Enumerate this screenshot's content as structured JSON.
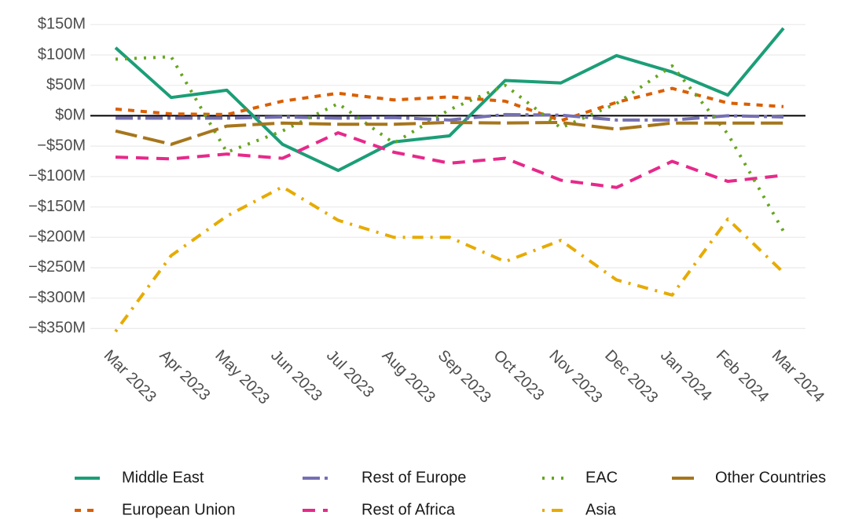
{
  "chart_data": {
    "type": "line",
    "x": [
      "Mar 2023",
      "Apr 2023",
      "May 2023",
      "Jun 2023",
      "Jul 2023",
      "Aug 2023",
      "Sep 2023",
      "Oct 2023",
      "Nov 2023",
      "Dec 2023",
      "Jan 2024",
      "Feb 2024",
      "Mar 2024"
    ],
    "series": [
      {
        "name": "Middle East",
        "color": "#1b9e77",
        "values": [
          112,
          30,
          42,
          -47,
          -90,
          -43,
          -33,
          58,
          54,
          99,
          72,
          34,
          144
        ]
      },
      {
        "name": "European Union",
        "color": "#d95f02",
        "values": [
          11,
          3,
          2,
          24,
          37,
          26,
          31,
          24,
          -8,
          22,
          45,
          21,
          15
        ]
      },
      {
        "name": "Rest of Europe",
        "color": "#7570b3",
        "values": [
          -4,
          -4,
          -4,
          -2,
          -4,
          -3,
          -7,
          2,
          1,
          -7,
          -7,
          0,
          -2
        ]
      },
      {
        "name": "Rest of Africa",
        "color": "#e7298a",
        "values": [
          -68,
          -71,
          -63,
          -70,
          -28,
          -60,
          -78,
          -70,
          -106,
          -118,
          -75,
          -108,
          -98
        ]
      },
      {
        "name": "EAC",
        "color": "#66a61e",
        "values": [
          93,
          97,
          -60,
          -25,
          20,
          -45,
          10,
          50,
          -20,
          20,
          82,
          -30,
          -190
        ]
      },
      {
        "name": "Asia",
        "color": "#e6ab02",
        "values": [
          -355,
          -230,
          -165,
          -117,
          -172,
          -200,
          -200,
          -240,
          -205,
          -270,
          -295,
          -170,
          -258
        ]
      },
      {
        "name": "Other Countries",
        "color": "#a6761d",
        "values": [
          -25,
          -47,
          -17,
          -12,
          -14,
          -14,
          -11,
          -12,
          -11,
          -22,
          -12,
          -12,
          -12
        ]
      }
    ],
    "ylim": [
      -365,
      162
    ],
    "yticks": [
      {
        "value": 150,
        "label": "$150M"
      },
      {
        "value": 100,
        "label": "$100M"
      },
      {
        "value": 50,
        "label": "$50M"
      },
      {
        "value": 0,
        "label": "$0M"
      },
      {
        "value": -50,
        "label": "−$50M"
      },
      {
        "value": -100,
        "label": "−$100M"
      },
      {
        "value": -150,
        "label": "−$150M"
      },
      {
        "value": -200,
        "label": "−$200M"
      },
      {
        "value": -250,
        "label": "−$250M"
      },
      {
        "value": -300,
        "label": "−$300M"
      },
      {
        "value": -350,
        "label": "−$350M"
      }
    ],
    "grid": true
  }
}
